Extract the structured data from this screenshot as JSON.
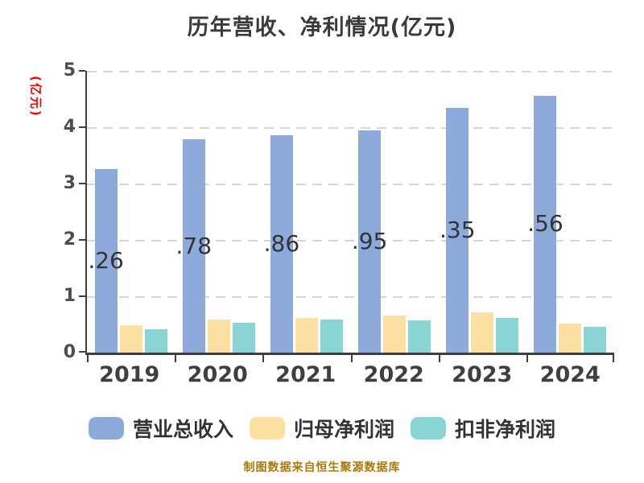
{
  "title": "历年营收、净利情况(亿元)",
  "y_axis_label": "(亿元)",
  "footer_note": "制图数据来自恒生聚源数据库",
  "colors": {
    "revenue_bar": "#8EAADB",
    "net_profit_bar": "#FCDFA3",
    "non_gaap_net_profit_bar": "#8AD4D6",
    "title_text": "#3A3A3A",
    "axis_line": "#3F3F3F",
    "tick_text": "#4D4D4D",
    "gridline": "#D6D6D6",
    "y_axis_label_text": "#FF0000",
    "footer_text": "#A9790B",
    "bar_label_text": "#333333"
  },
  "chart_data": {
    "type": "bar",
    "title": "历年营收、净利情况(亿元)",
    "ylabel": "(亿元)",
    "ylim": [
      0,
      5
    ],
    "y_ticks": [
      0,
      1,
      2,
      3,
      4,
      5
    ],
    "grid": "horizontal-dashed",
    "legend_position": "bottom",
    "categories": [
      "2019",
      "2020",
      "2021",
      "2022",
      "2023",
      "2024"
    ],
    "series": [
      {
        "key": "revenue",
        "name": "营业总收入",
        "color": "#8EAADB",
        "values": [
          3.26,
          3.78,
          3.86,
          3.95,
          4.35,
          4.56
        ],
        "bar_labels_visible": [
          ".26",
          ".78",
          ".86",
          ".95",
          ".35",
          ".56"
        ]
      },
      {
        "key": "net_profit",
        "name": "归母净利润",
        "color": "#FCDFA3",
        "values": [
          0.49,
          0.59,
          0.62,
          0.66,
          0.71,
          0.51
        ]
      },
      {
        "key": "non_gaap_net_profit",
        "name": "扣非净利润",
        "color": "#8AD4D6",
        "values": [
          0.42,
          0.53,
          0.59,
          0.57,
          0.62,
          0.46
        ]
      }
    ]
  }
}
